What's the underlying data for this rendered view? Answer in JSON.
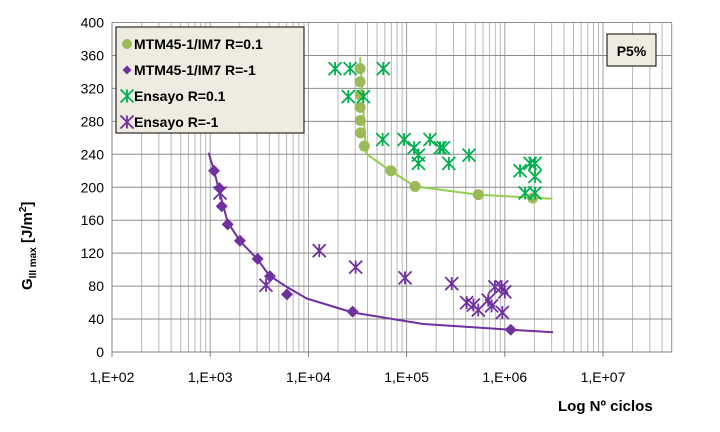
{
  "chart_data": {
    "type": "scatter",
    "title": "",
    "annotation": "P5%",
    "xlabel": "Log Nº ciclos",
    "ylabel": {
      "main": "G",
      "subscript": "III max",
      "unit_pre": " [J/m",
      "unit_sup": "2",
      "unit_post": "]"
    },
    "xscale": "log",
    "xlim": [
      100,
      50000000
    ],
    "ylim": [
      0,
      400
    ],
    "x_ticks": [
      100,
      1000,
      10000,
      100000,
      1000000,
      10000000
    ],
    "x_tick_labels": [
      "1,E+02",
      "1,E+03",
      "1,E+04",
      "1,E+05",
      "1,E+06",
      "1,E+07"
    ],
    "y_ticks": [
      0,
      40,
      80,
      120,
      160,
      200,
      240,
      280,
      320,
      360,
      400
    ],
    "y_tick_labels": [
      "0",
      "40",
      "80",
      "120",
      "160",
      "200",
      "240",
      "280",
      "320",
      "360",
      "400"
    ],
    "grid": true,
    "legend_position": "top-left",
    "series": [
      {
        "name": "MTM45-1/IM7 R=0.1",
        "marker": "circle",
        "color": "#9bbb59",
        "points": [
          [
            33600,
            344
          ],
          [
            33600,
            328
          ],
          [
            33700,
            312
          ],
          [
            33700,
            297
          ],
          [
            33800,
            281
          ],
          [
            34000,
            266
          ],
          [
            37100,
            250
          ],
          [
            69300,
            220
          ],
          [
            122000,
            201
          ],
          [
            537000,
            191
          ],
          [
            1920000,
            187
          ]
        ]
      },
      {
        "name": "MTM45-1/IM7 R=-1",
        "marker": "diamond",
        "color": "#7030a0",
        "points": [
          [
            1094,
            220
          ],
          [
            1240,
            199
          ],
          [
            1310,
            177
          ],
          [
            1506,
            155
          ],
          [
            2010,
            135
          ],
          [
            3040,
            113
          ],
          [
            4060,
            92
          ],
          [
            6050,
            70
          ],
          [
            28200,
            49
          ],
          [
            1150000,
            27
          ]
        ]
      },
      {
        "name": "Ensayo R=0.1",
        "marker": "star",
        "color": "#00b050",
        "points": [
          [
            18700,
            344
          ],
          [
            26600,
            344
          ],
          [
            57900,
            344
          ],
          [
            25500,
            310
          ],
          [
            36300,
            310
          ],
          [
            57000,
            258
          ],
          [
            94200,
            258
          ],
          [
            119000,
            248
          ],
          [
            132000,
            239
          ],
          [
            132000,
            229
          ],
          [
            173000,
            258
          ],
          [
            219000,
            248
          ],
          [
            237000,
            248
          ],
          [
            269000,
            229
          ],
          [
            432000,
            239
          ],
          [
            1430000,
            220
          ],
          [
            1810000,
            229
          ],
          [
            2030000,
            229
          ],
          [
            2030000,
            213
          ],
          [
            1610000,
            193
          ],
          [
            2030000,
            193
          ]
        ]
      },
      {
        "name": "Ensayo R=-1",
        "marker": "star",
        "color": "#7030a0",
        "points": [
          [
            1260,
            193
          ],
          [
            3700,
            81
          ],
          [
            12900,
            123
          ],
          [
            30300,
            103
          ],
          [
            96400,
            90
          ],
          [
            288000,
            83
          ],
          [
            409000,
            60
          ],
          [
            479000,
            57
          ],
          [
            537000,
            51
          ],
          [
            677000,
            63
          ],
          [
            734000,
            56
          ],
          [
            794000,
            79
          ],
          [
            930000,
            79
          ],
          [
            1000000,
            73
          ],
          [
            944000,
            48
          ]
        ]
      }
    ],
    "fit_lines": [
      {
        "color": "#92d050",
        "points": [
          [
            33600,
            358
          ],
          [
            38600,
            241
          ],
          [
            62600,
            223
          ],
          [
            122000,
            201
          ],
          [
            537000,
            191
          ],
          [
            3050000,
            186
          ]
        ]
      },
      {
        "color": "#7030a0",
        "points": [
          [
            966,
            242
          ],
          [
            1094,
            220
          ],
          [
            1500,
            158
          ],
          [
            2000,
            135
          ],
          [
            3000,
            113
          ],
          [
            4000,
            93
          ],
          [
            6010,
            79
          ],
          [
            9620,
            65
          ],
          [
            28200,
            48
          ],
          [
            148000,
            34
          ],
          [
            1150000,
            27
          ],
          [
            3100000,
            24
          ]
        ]
      }
    ]
  }
}
